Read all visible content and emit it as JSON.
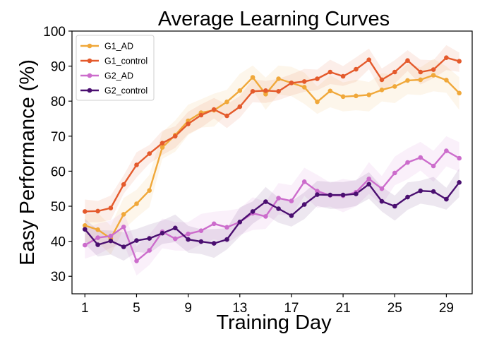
{
  "chart_data": {
    "type": "line",
    "title": "Average Learning Curves",
    "xlabel": "Training Day",
    "ylabel": "Easy Performance (%)",
    "xlim": [
      0,
      31
    ],
    "ylim": [
      25,
      100
    ],
    "xticks": [
      1,
      5,
      9,
      13,
      17,
      21,
      25,
      29
    ],
    "yticks": [
      30,
      40,
      50,
      60,
      70,
      80,
      90,
      100
    ],
    "legend_position": "top-left",
    "x": [
      1,
      2,
      3,
      4,
      5,
      6,
      7,
      8,
      9,
      10,
      11,
      12,
      13,
      14,
      15,
      16,
      17,
      18,
      19,
      20,
      21,
      22,
      23,
      24,
      25,
      26,
      27,
      28,
      29,
      30
    ],
    "series": [
      {
        "name": "G1_AD",
        "color": "#f0a83a",
        "values": [
          44.5,
          43.3,
          40.8,
          47.7,
          50.7,
          54.5,
          66.8,
          70.3,
          74.4,
          76.7,
          77.4,
          79.8,
          83.0,
          86.8,
          82.0,
          86.4,
          85.2,
          84.0,
          79.8,
          82.9,
          81.3,
          81.5,
          81.8,
          83.2,
          84.2,
          85.9,
          86.1,
          87.4,
          86.0,
          82.3
        ],
        "band": 4
      },
      {
        "name": "G1_control",
        "color": "#e45a2c",
        "values": [
          48.5,
          48.6,
          49.5,
          56.2,
          61.8,
          65.0,
          68.0,
          70.0,
          73.5,
          76.0,
          77.6,
          75.8,
          78.4,
          82.8,
          83.0,
          82.8,
          85.2,
          85.6,
          86.4,
          88.3,
          87.1,
          89.1,
          91.8,
          86.1,
          88.3,
          91.6,
          88.3,
          89.0,
          92.4,
          91.4
        ],
        "band": 3
      },
      {
        "name": "G2_AD",
        "color": "#cc6ccc",
        "values": [
          38.9,
          41.0,
          41.5,
          44.1,
          34.4,
          37.4,
          42.7,
          40.7,
          42.1,
          43.0,
          45.0,
          44.0,
          45.5,
          48.0,
          47.1,
          52.3,
          51.5,
          57.0,
          54.3,
          53.1,
          53.0,
          54.0,
          57.8,
          55.0,
          59.5,
          62.5,
          63.9,
          61.5,
          65.8,
          63.7
        ],
        "band": 4
      },
      {
        "name": "G2_control",
        "color": "#4a0f70",
        "values": [
          43.4,
          39.0,
          40.1,
          38.4,
          40.2,
          40.8,
          42.3,
          43.8,
          40.5,
          39.9,
          39.4,
          40.5,
          45.5,
          48.5,
          51.3,
          49.3,
          47.3,
          50.5,
          53.3,
          53.2,
          53.2,
          53.5,
          56.3,
          51.4,
          50.0,
          52.6,
          54.4,
          54.2,
          52.0,
          56.8
        ],
        "band": 3.5
      }
    ]
  }
}
